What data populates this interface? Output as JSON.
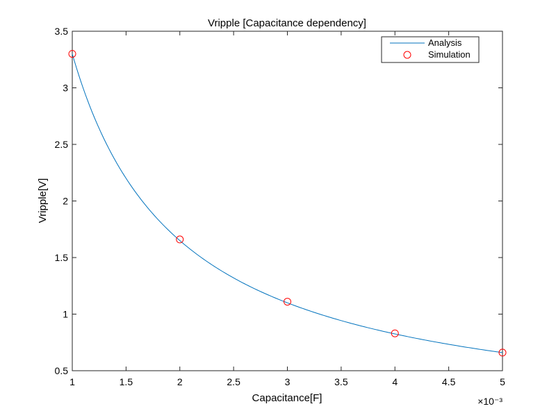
{
  "chart_data": {
    "type": "line",
    "title": "Vripple [Capacitance dependency]",
    "xlabel": "Capacitance[F]",
    "ylabel": "Vripple[V]",
    "x_exponent_label": "×10⁻³",
    "xlim": [
      1,
      5
    ],
    "ylim": [
      0.5,
      3.5
    ],
    "x_ticks": [
      1,
      1.5,
      2,
      2.5,
      3,
      3.5,
      4,
      4.5,
      5
    ],
    "x_tick_labels": [
      "1",
      "1.5",
      "2",
      "2.5",
      "3",
      "3.5",
      "4",
      "4.5",
      "5"
    ],
    "y_ticks": [
      0.5,
      1,
      1.5,
      2,
      2.5,
      3,
      3.5
    ],
    "y_tick_labels": [
      "0.5",
      "1",
      "1.5",
      "2",
      "2.5",
      "3",
      "3.5"
    ],
    "grid": false,
    "legend_position": "top-right",
    "series": [
      {
        "name": "Analysis",
        "kind": "line",
        "color": "#0072bd",
        "function": "3.3 / x",
        "x_range": [
          1,
          5
        ]
      },
      {
        "name": "Simulation",
        "kind": "scatter",
        "marker": "open-circle",
        "color": "#ff0000",
        "x": [
          1,
          2,
          3,
          4,
          5
        ],
        "y": [
          3.3,
          1.66,
          1.11,
          0.83,
          0.66
        ]
      }
    ]
  }
}
